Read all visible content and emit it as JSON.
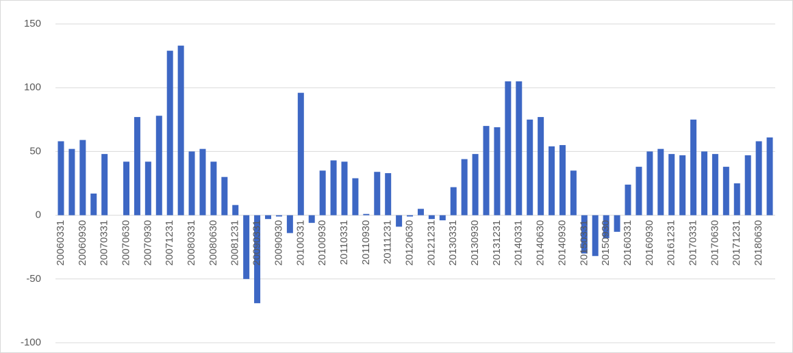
{
  "chart_data": {
    "type": "bar",
    "categories": [
      "20060331",
      null,
      "20060930",
      null,
      "20070331",
      null,
      "20070630",
      null,
      "20070930",
      null,
      "20071231",
      null,
      "20080331",
      null,
      "20080630",
      null,
      "20081231",
      null,
      "20090331",
      null,
      "20090930",
      null,
      "20100331",
      null,
      "20100930",
      null,
      "20110331",
      null,
      "20110930",
      null,
      "20111231",
      null,
      "20120630",
      null,
      "20121231",
      null,
      "20130331",
      null,
      "20130930",
      null,
      "20131231",
      null,
      "20140331",
      null,
      "20140630",
      null,
      "20140930",
      null,
      "20150331",
      null,
      "20150930",
      null,
      "20160331",
      null,
      "20160930",
      null,
      "20161231",
      null,
      "20170331",
      null,
      "20170630",
      null,
      "20171231",
      null,
      "20180630",
      null
    ],
    "values": [
      58,
      52,
      59,
      17,
      48,
      0,
      42,
      77,
      42,
      78,
      129,
      133,
      50,
      52,
      42,
      30,
      8,
      -50,
      -69,
      -3,
      -1,
      -14,
      96,
      -6,
      35,
      43,
      42,
      29,
      1,
      34,
      33,
      -9,
      -1,
      5,
      -3,
      -4,
      22,
      44,
      48,
      70,
      69,
      105,
      105,
      75,
      77,
      54,
      55,
      35,
      -30,
      -32,
      -18,
      -13,
      24,
      38,
      50,
      52,
      48,
      47,
      75,
      50,
      48,
      38,
      25,
      47,
      58,
      61
    ],
    "color": "#3d67c4",
    "ylim": [
      -100,
      150
    ],
    "yticks": [
      -100,
      -50,
      0,
      50,
      100,
      150
    ],
    "grid": true
  }
}
